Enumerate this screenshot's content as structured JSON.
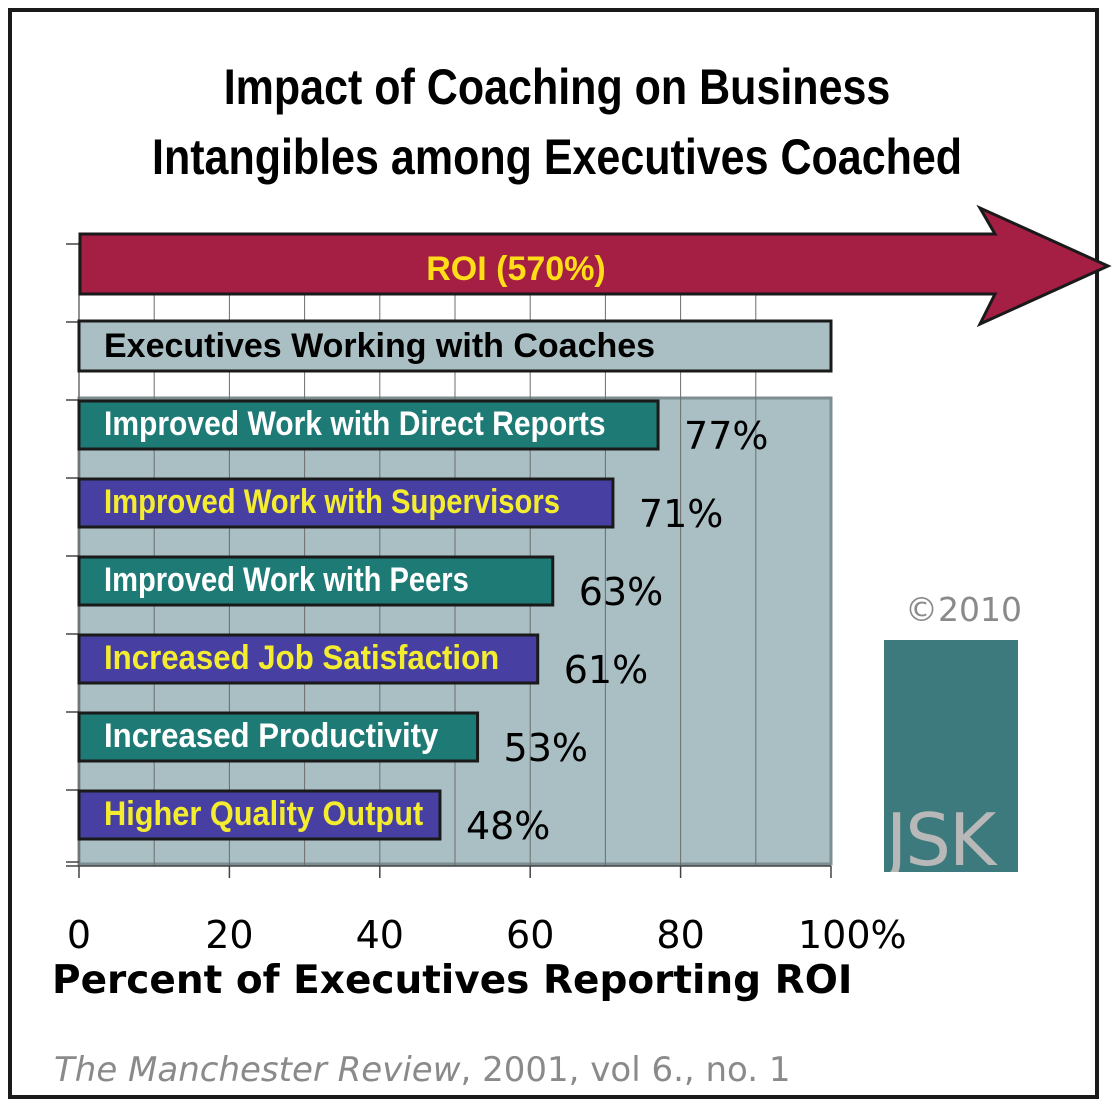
{
  "title_line1": "Impact of Coaching on Business",
  "title_line2": "Intangibles among Executives Coached",
  "xlabel": "Percent of Executives Reporting ROI",
  "source_italic": "The Manchester Review",
  "source_rest": ", 2001, vol 6., no. 1",
  "copyright": "©2010",
  "logo_text": "JSK",
  "colors": {
    "arrow": "#a51f44",
    "arrow_text": "#ffde17",
    "panel": "#a9bfc3",
    "teal": "#1e7a75",
    "purple": "#4740a2",
    "white_text": "#ffffff",
    "yellow_text": "#f4ec2e",
    "logo": "#3d7a7d"
  },
  "chart_data": {
    "type": "bar",
    "orientation": "horizontal",
    "title": "Impact of Coaching on Business Intangibles among Executives Coached",
    "xlabel": "Percent of Executives Reporting ROI",
    "xlim": [
      0,
      100
    ],
    "xticks": [
      "0",
      "20",
      "40",
      "60",
      "80",
      "100%"
    ],
    "roi_label": "ROI (570%)",
    "header_label": "Executives Working with Coaches",
    "categories": [
      "Improved Work with Direct Reports",
      "Improved Work with Supervisors",
      "Improved Work with Peers",
      "Increased Job Satisfaction",
      "Increased Productivity",
      "Higher Quality Output"
    ],
    "values": [
      77,
      71,
      63,
      61,
      53,
      48
    ],
    "value_labels": [
      "77%",
      "71%",
      "63%",
      "61%",
      "53%",
      "48%"
    ],
    "grid": true
  }
}
